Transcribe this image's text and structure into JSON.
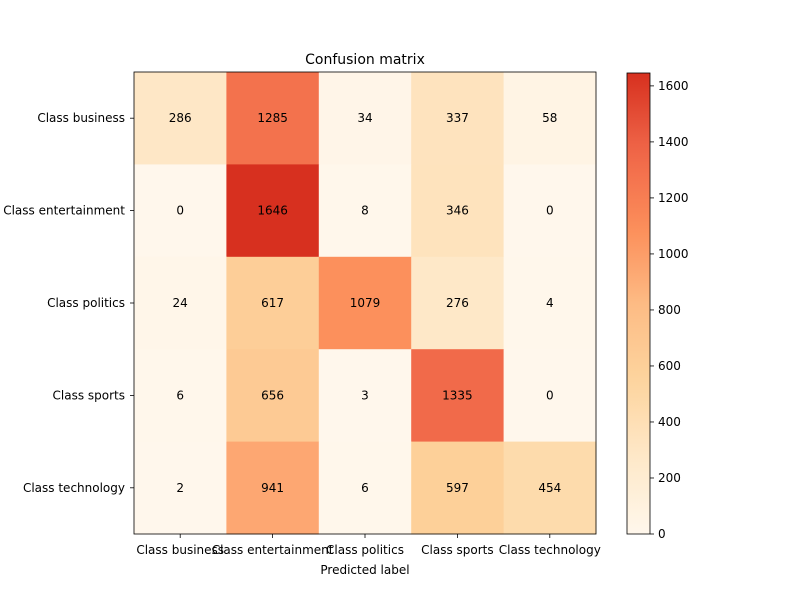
{
  "chart_data": {
    "type": "heatmap",
    "title": "Confusion matrix",
    "xlabel": "Predicted label",
    "ylabel": "",
    "x_categories": [
      "Class business",
      "Class entertainment",
      "Class politics",
      "Class sports",
      "Class technology"
    ],
    "y_categories": [
      "Class business",
      "Class entertainment",
      "Class politics",
      "Class sports",
      "Class technology"
    ],
    "values": [
      [
        286,
        1285,
        34,
        337,
        58
      ],
      [
        0,
        1646,
        8,
        346,
        0
      ],
      [
        24,
        617,
        1079,
        276,
        4
      ],
      [
        6,
        656,
        3,
        1335,
        0
      ],
      [
        2,
        941,
        6,
        597,
        454
      ]
    ],
    "colorbar": {
      "range": [
        0,
        1646
      ],
      "ticks": [
        0,
        200,
        400,
        600,
        800,
        1000,
        1200,
        1400,
        1600
      ],
      "colormap": "OrRd",
      "stops": [
        "#fff7ec",
        "#fee8c8",
        "#fdd49e",
        "#fdbb84",
        "#fc8d59",
        "#ef6548",
        "#d7301f",
        "#b30000",
        "#7f0000"
      ],
      "display_max_fraction": 0.75
    }
  }
}
